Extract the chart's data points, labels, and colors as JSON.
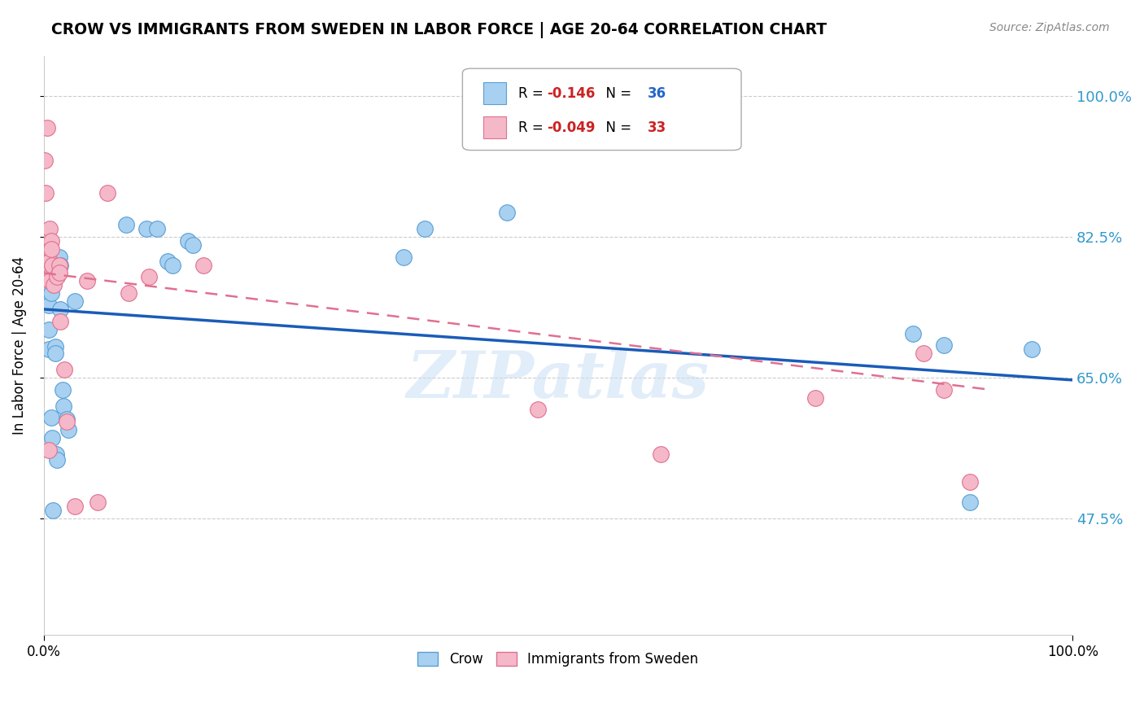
{
  "title": "CROW VS IMMIGRANTS FROM SWEDEN IN LABOR FORCE | AGE 20-64 CORRELATION CHART",
  "source": "Source: ZipAtlas.com",
  "ylabel": "In Labor Force | Age 20-64",
  "xlim": [
    0.0,
    1.0
  ],
  "ylim": [
    0.33,
    1.05
  ],
  "yticks": [
    0.475,
    0.65,
    0.825,
    1.0
  ],
  "ytick_labels": [
    "47.5%",
    "65.0%",
    "82.5%",
    "100.0%"
  ],
  "xtick_labels": [
    "0.0%",
    "100.0%"
  ],
  "xticks": [
    0.0,
    1.0
  ],
  "legend_blue_r": "-0.146",
  "legend_blue_n": "36",
  "legend_pink_r": "-0.049",
  "legend_pink_n": "33",
  "crow_color": "#a8d0f0",
  "crow_edge": "#5a9fd4",
  "sweden_color": "#f5b8c8",
  "sweden_edge": "#e07090",
  "trendline_blue": "#1a5cb8",
  "trendline_pink": "#e07090",
  "watermark": "ZIPatlas",
  "crow_x": [
    0.004,
    0.005,
    0.005,
    0.005,
    0.006,
    0.006,
    0.007,
    0.007,
    0.008,
    0.009,
    0.011,
    0.011,
    0.012,
    0.013,
    0.015,
    0.016,
    0.016,
    0.018,
    0.019,
    0.022,
    0.024,
    0.03,
    0.08,
    0.1,
    0.11,
    0.12,
    0.125,
    0.14,
    0.145,
    0.35,
    0.37,
    0.45,
    0.845,
    0.875,
    0.9,
    0.96
  ],
  "crow_y": [
    0.755,
    0.74,
    0.71,
    0.685,
    0.8,
    0.77,
    0.755,
    0.6,
    0.575,
    0.485,
    0.688,
    0.68,
    0.555,
    0.548,
    0.8,
    0.79,
    0.735,
    0.635,
    0.615,
    0.598,
    0.585,
    0.745,
    0.84,
    0.835,
    0.835,
    0.795,
    0.79,
    0.82,
    0.815,
    0.8,
    0.835,
    0.855,
    0.705,
    0.69,
    0.495,
    0.685
  ],
  "sweden_x": [
    0.001,
    0.002,
    0.003,
    0.005,
    0.005,
    0.006,
    0.006,
    0.006,
    0.006,
    0.006,
    0.007,
    0.007,
    0.008,
    0.01,
    0.013,
    0.015,
    0.015,
    0.016,
    0.02,
    0.022,
    0.03,
    0.042,
    0.052,
    0.062,
    0.082,
    0.102,
    0.155,
    0.48,
    0.6,
    0.75,
    0.855,
    0.875,
    0.9
  ],
  "sweden_y": [
    0.92,
    0.88,
    0.96,
    0.79,
    0.56,
    0.835,
    0.81,
    0.795,
    0.775,
    0.77,
    0.82,
    0.81,
    0.79,
    0.765,
    0.775,
    0.79,
    0.78,
    0.72,
    0.66,
    0.595,
    0.49,
    0.77,
    0.495,
    0.88,
    0.755,
    0.775,
    0.79,
    0.61,
    0.555,
    0.625,
    0.68,
    0.635,
    0.52
  ],
  "crow_trend_x": [
    0.0,
    1.0
  ],
  "crow_trend_y": [
    0.735,
    0.647
  ],
  "sweden_trend_x": [
    0.0,
    0.92
  ],
  "sweden_trend_y": [
    0.78,
    0.635
  ]
}
